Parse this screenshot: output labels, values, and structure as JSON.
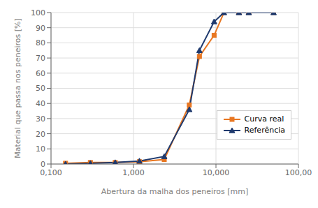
{
  "chart_data": {
    "type": "line",
    "x": [
      0.15,
      0.3,
      0.6,
      1.18,
      2.36,
      4.75,
      6.3,
      9.5,
      12.5,
      19.0,
      25.0,
      50.0
    ],
    "series": [
      {
        "name": "Curva real",
        "color": "#E87722",
        "marker": "square",
        "values": [
          0.5,
          1.0,
          1.0,
          1.5,
          3.0,
          39.0,
          71.0,
          85.0,
          100.0,
          100.0,
          100.0,
          100.0
        ]
      },
      {
        "name": "Referência",
        "color": "#1F3A6E",
        "marker": "triangle",
        "values": [
          0.0,
          0.5,
          1.0,
          2.0,
          5.0,
          36.0,
          75.0,
          94.0,
          100.0,
          100.0,
          100.0,
          100.0
        ]
      }
    ],
    "xlabel": "Abertura da malha dos peneiros [mm]",
    "ylabel": "Material que passa nos peneiros [%]",
    "log": "x",
    "xlim": [
      0.1,
      100.0
    ],
    "ylim": [
      0,
      100
    ],
    "xticks": [
      {
        "value": 0.1,
        "label": "0,100"
      },
      {
        "value": 1.0,
        "label": "1,000"
      },
      {
        "value": 10.0,
        "label": "10,000"
      },
      {
        "value": 100.0,
        "label": "100,00"
      }
    ],
    "yticks": [
      0,
      10,
      20,
      30,
      40,
      50,
      60,
      70,
      80,
      90,
      100
    ],
    "grid": true,
    "legend": "lower right"
  }
}
